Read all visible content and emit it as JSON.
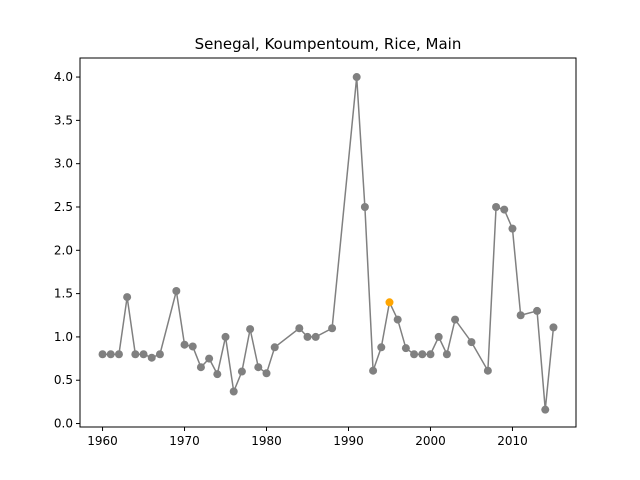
{
  "chart_data": {
    "type": "line",
    "title": "Senegal, Koumpentoum, Rice, Main",
    "xlabel": "",
    "ylabel": "",
    "xlim": [
      1957.25,
      2017.75
    ],
    "ylim": [
      -0.04,
      4.22
    ],
    "xticks": [
      1960,
      1970,
      1980,
      1990,
      2000,
      2010
    ],
    "xtick_labels": [
      "1960",
      "1970",
      "1980",
      "1990",
      "2000",
      "2010"
    ],
    "yticks": [
      0.0,
      0.5,
      1.0,
      1.5,
      2.0,
      2.5,
      3.0,
      3.5,
      4.0
    ],
    "ytick_labels": [
      "0.0",
      "0.5",
      "1.0",
      "1.5",
      "2.0",
      "2.5",
      "3.0",
      "3.5",
      "4.0"
    ],
    "grid": false,
    "line_color": "#808080",
    "highlight_color": "#FFA500",
    "highlight_index": 29,
    "series": [
      {
        "x": [
          1960,
          1961,
          1962,
          1963,
          1964,
          1965,
          1966,
          1967,
          1969,
          1970,
          1971,
          1972,
          1973,
          1974,
          1975,
          1976,
          1977,
          1978,
          1979,
          1980,
          1981,
          1984,
          1985,
          1986,
          1988,
          1991,
          1992,
          1993,
          1994,
          1995,
          1996,
          1997,
          1998,
          1999,
          2000,
          2001,
          2002,
          2003,
          2005,
          2007,
          2008,
          2009,
          2010,
          2011,
          2013,
          2014,
          2015
        ],
        "y": [
          0.8,
          0.8,
          0.8,
          1.46,
          0.8,
          0.8,
          0.76,
          0.8,
          1.53,
          0.91,
          0.89,
          0.65,
          0.75,
          0.57,
          1.0,
          0.37,
          0.6,
          1.09,
          0.65,
          0.58,
          0.88,
          1.1,
          1.0,
          1.0,
          1.1,
          4.0,
          2.5,
          0.61,
          0.88,
          1.4,
          1.2,
          0.87,
          0.8,
          0.8,
          0.8,
          1.0,
          0.8,
          1.2,
          0.94,
          0.61,
          2.5,
          2.47,
          2.25,
          1.25,
          1.3,
          0.16,
          1.11
        ]
      }
    ]
  }
}
